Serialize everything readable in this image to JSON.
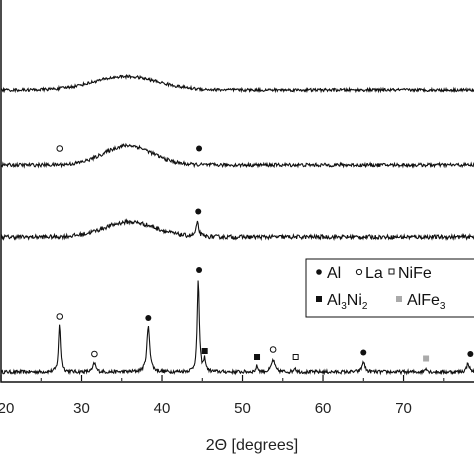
{
  "chart_data": {
    "type": "line",
    "title": "",
    "xlabel": "2Θ [degrees]",
    "ylabel": "",
    "xlim": [
      20,
      79
    ],
    "x_ticks": [
      20,
      30,
      40,
      50,
      60,
      70
    ],
    "x_tick_labels": [
      "20",
      "30",
      "40",
      "50",
      "60",
      "70"
    ],
    "grid": false,
    "legend_position": "right",
    "legend": [
      {
        "marker": "filled-circle",
        "label": "Al",
        "color": "#111111"
      },
      {
        "marker": "open-circle",
        "label": "La",
        "color": "#111111"
      },
      {
        "marker": "open-square",
        "label": "NiFe",
        "color": "#111111"
      },
      {
        "marker": "filled-square",
        "label": "Al3Ni2",
        "label_parts": [
          "Al",
          "3",
          "Ni",
          "2"
        ],
        "color": "#111111"
      },
      {
        "marker": "gray-square",
        "label": "AlFe3",
        "label_parts": [
          "AlFe",
          "3"
        ],
        "color": "#aaaaaa"
      }
    ],
    "series": [
      {
        "baseline": 0.0,
        "noise": 0.012,
        "peaks": [
          {
            "x": 27.3,
            "h": 0.32,
            "w": 0.3
          },
          {
            "x": 31.6,
            "h": 0.06,
            "w": 0.4
          },
          {
            "x": 38.3,
            "h": 0.3,
            "w": 0.45
          },
          {
            "x": 44.5,
            "h": 0.62,
            "w": 0.3
          },
          {
            "x": 45.3,
            "h": 0.08,
            "w": 0.3
          },
          {
            "x": 51.8,
            "h": 0.04,
            "w": 0.3
          },
          {
            "x": 53.8,
            "h": 0.08,
            "w": 0.5
          },
          {
            "x": 56.5,
            "h": 0.03,
            "w": 0.3
          },
          {
            "x": 65.0,
            "h": 0.07,
            "w": 0.4
          },
          {
            "x": 72.8,
            "h": 0.03,
            "w": 0.3
          },
          {
            "x": 78.0,
            "h": 0.06,
            "w": 0.4
          }
        ],
        "humps": [],
        "markers": [
          {
            "x": 27.3,
            "y": 0.37,
            "type": "open-circle"
          },
          {
            "x": 31.6,
            "y": 0.12,
            "type": "open-circle"
          },
          {
            "x": 38.3,
            "y": 0.36,
            "type": "filled-circle"
          },
          {
            "x": 44.6,
            "y": 0.68,
            "type": "filled-circle"
          },
          {
            "x": 45.3,
            "y": 0.14,
            "type": "filled-square"
          },
          {
            "x": 51.8,
            "y": 0.1,
            "type": "filled-square"
          },
          {
            "x": 53.8,
            "y": 0.15,
            "type": "open-circle"
          },
          {
            "x": 56.6,
            "y": 0.1,
            "type": "open-square"
          },
          {
            "x": 65.0,
            "y": 0.13,
            "type": "filled-circle"
          },
          {
            "x": 72.8,
            "y": 0.09,
            "type": "gray-square"
          },
          {
            "x": 78.3,
            "y": 0.12,
            "type": "filled-circle"
          }
        ]
      },
      {
        "baseline": 0.9,
        "noise": 0.014,
        "peaks": [
          {
            "x": 44.4,
            "h": 0.09,
            "w": 0.4
          }
        ],
        "humps": [
          {
            "x": 36.0,
            "h": 0.1,
            "w": 3.2
          }
        ],
        "markers": [
          {
            "x": 44.5,
            "y": 1.07,
            "type": "filled-circle"
          }
        ]
      },
      {
        "baseline": 1.38,
        "noise": 0.012,
        "peaks": [],
        "humps": [
          {
            "x": 35.8,
            "h": 0.13,
            "w": 3.0
          }
        ],
        "markers": [
          {
            "x": 27.3,
            "y": 1.49,
            "type": "open-circle"
          },
          {
            "x": 44.6,
            "y": 1.49,
            "type": "filled-circle"
          }
        ]
      },
      {
        "baseline": 1.88,
        "noise": 0.01,
        "peaks": [],
        "humps": [
          {
            "x": 35.5,
            "h": 0.09,
            "w": 4.0
          }
        ],
        "markers": []
      }
    ]
  }
}
